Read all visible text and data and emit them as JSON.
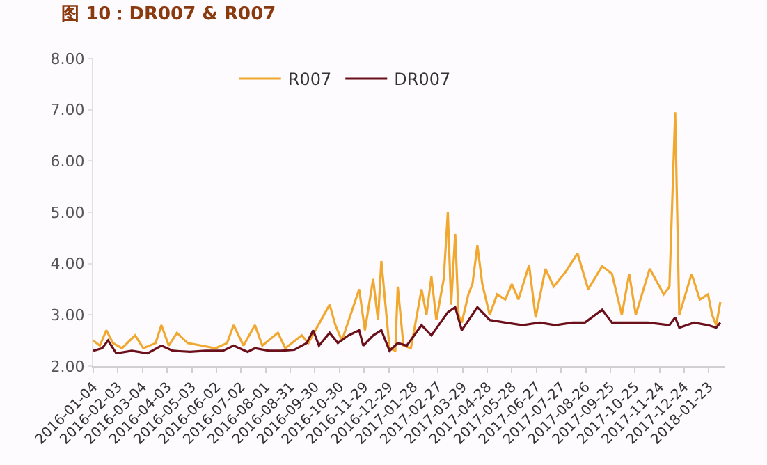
{
  "chart_data": {
    "type": "line",
    "title": "图 10：DR007 & R007",
    "xlim": [
      "2016-01-04",
      "2018-02-12"
    ],
    "xticks": [
      "2016-01-04",
      "2016-02-03",
      "2016-03-04",
      "2016-04-03",
      "2016-05-03",
      "2016-06-02",
      "2016-07-02",
      "2016-08-01",
      "2016-08-31",
      "2016-09-30",
      "2016-10-30",
      "2016-11-29",
      "2016-12-29",
      "2017-01-28",
      "2017-02-27",
      "2017-03-29",
      "2017-04-28",
      "2017-05-28",
      "2017-06-27",
      "2017-07-27",
      "2017-08-26",
      "2017-09-25",
      "2017-10-25",
      "2017-11-24",
      "2017-12-24",
      "2018-01-23"
    ],
    "ylim": [
      2,
      8
    ],
    "yticks": [
      {
        "value": 2,
        "label": "2.00"
      },
      {
        "value": 3,
        "label": "3.00"
      },
      {
        "value": 4,
        "label": "4.00"
      },
      {
        "value": 5,
        "label": "5.00"
      },
      {
        "value": 6,
        "label": "6.00"
      },
      {
        "value": 7,
        "label": "7.00"
      },
      {
        "value": 8,
        "label": "8.00"
      }
    ],
    "grid": false,
    "legend": "top",
    "marker": "none",
    "line_style": "solid",
    "series": [
      {
        "name": "R007",
        "color": "#f0a830",
        "x": [
          "2016-01-04",
          "2016-01-12",
          "2016-01-20",
          "2016-01-28",
          "2016-02-08",
          "2016-02-24",
          "2016-03-05",
          "2016-03-20",
          "2016-03-27",
          "2016-04-05",
          "2016-04-15",
          "2016-04-28",
          "2016-05-15",
          "2016-06-01",
          "2016-06-15",
          "2016-06-23",
          "2016-07-05",
          "2016-07-19",
          "2016-07-28",
          "2016-08-16",
          "2016-08-25",
          "2016-09-14",
          "2016-09-22",
          "2016-10-18",
          "2016-10-25",
          "2016-11-02",
          "2016-11-23",
          "2016-11-30",
          "2016-12-10",
          "2016-12-16",
          "2016-12-20",
          "2016-12-30",
          "2017-01-06",
          "2017-01-09",
          "2017-01-16",
          "2017-01-25",
          "2017-02-07",
          "2017-02-13",
          "2017-02-19",
          "2017-02-25",
          "2017-03-06",
          "2017-03-11",
          "2017-03-15",
          "2017-03-20",
          "2017-03-24",
          "2017-03-28",
          "2017-04-05",
          "2017-04-10",
          "2017-04-16",
          "2017-04-22",
          "2017-05-01",
          "2017-05-10",
          "2017-05-20",
          "2017-05-28",
          "2017-06-05",
          "2017-06-18",
          "2017-06-26",
          "2017-07-08",
          "2017-07-18",
          "2017-08-02",
          "2017-08-16",
          "2017-08-29",
          "2017-09-15",
          "2017-09-27",
          "2017-10-09",
          "2017-10-18",
          "2017-10-26",
          "2017-11-12",
          "2017-11-29",
          "2017-12-06",
          "2017-12-13",
          "2017-12-18",
          "2018-01-02",
          "2018-01-12",
          "2018-01-22",
          "2018-01-27",
          "2018-02-01",
          "2018-02-06"
        ],
        "values": [
          2.5,
          2.4,
          2.7,
          2.45,
          2.35,
          2.6,
          2.35,
          2.45,
          2.8,
          2.4,
          2.65,
          2.45,
          2.4,
          2.35,
          2.45,
          2.8,
          2.4,
          2.8,
          2.4,
          2.65,
          2.35,
          2.6,
          2.45,
          3.2,
          2.8,
          2.5,
          3.5,
          2.7,
          3.7,
          2.9,
          4.05,
          2.35,
          2.3,
          3.55,
          2.4,
          2.35,
          3.5,
          3.0,
          3.75,
          2.9,
          3.7,
          5.0,
          3.2,
          4.58,
          3.0,
          2.85,
          3.4,
          3.6,
          4.36,
          3.6,
          3.0,
          3.4,
          3.3,
          3.6,
          3.3,
          3.97,
          2.95,
          3.9,
          3.55,
          3.85,
          4.2,
          3.5,
          3.95,
          3.8,
          3.0,
          3.8,
          3.0,
          3.9,
          3.4,
          3.55,
          6.95,
          3.0,
          3.8,
          3.3,
          3.4,
          3.0,
          2.8,
          3.25
        ]
      },
      {
        "name": "DR007",
        "color": "#6b0f1a",
        "x": [
          "2016-01-04",
          "2016-01-15",
          "2016-01-22",
          "2016-02-01",
          "2016-02-20",
          "2016-03-10",
          "2016-03-27",
          "2016-04-10",
          "2016-05-01",
          "2016-05-20",
          "2016-06-10",
          "2016-06-23",
          "2016-07-10",
          "2016-07-19",
          "2016-08-05",
          "2016-08-20",
          "2016-09-05",
          "2016-09-20",
          "2016-09-28",
          "2016-10-05",
          "2016-10-18",
          "2016-10-28",
          "2016-11-10",
          "2016-11-23",
          "2016-11-28",
          "2016-12-10",
          "2016-12-20",
          "2016-12-30",
          "2017-01-09",
          "2017-01-20",
          "2017-02-07",
          "2017-02-19",
          "2017-03-11",
          "2017-03-20",
          "2017-03-28",
          "2017-04-16",
          "2017-05-01",
          "2017-05-20",
          "2017-06-10",
          "2017-07-01",
          "2017-07-20",
          "2017-08-10",
          "2017-08-25",
          "2017-09-15",
          "2017-09-27",
          "2017-10-18",
          "2017-11-10",
          "2017-12-06",
          "2017-12-13",
          "2017-12-18",
          "2018-01-05",
          "2018-01-22",
          "2018-02-01",
          "2018-02-06"
        ],
        "values": [
          2.3,
          2.35,
          2.5,
          2.25,
          2.3,
          2.25,
          2.4,
          2.3,
          2.28,
          2.3,
          2.3,
          2.4,
          2.28,
          2.35,
          2.3,
          2.3,
          2.32,
          2.45,
          2.7,
          2.4,
          2.65,
          2.45,
          2.6,
          2.7,
          2.4,
          2.6,
          2.7,
          2.3,
          2.45,
          2.4,
          2.8,
          2.6,
          3.05,
          3.15,
          2.7,
          3.15,
          2.9,
          2.85,
          2.8,
          2.85,
          2.8,
          2.85,
          2.85,
          3.1,
          2.85,
          2.85,
          2.85,
          2.8,
          2.95,
          2.75,
          2.85,
          2.8,
          2.75,
          2.85
        ]
      }
    ]
  }
}
